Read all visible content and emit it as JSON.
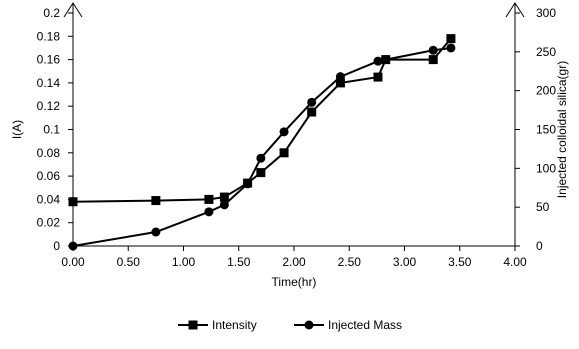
{
  "chart_data": {
    "type": "line",
    "title": "",
    "xlabel": "Time(hr)",
    "ylabel_left": "I(A)",
    "ylabel_right": "Injected colloidal silica(gr)",
    "xlim": [
      0,
      4
    ],
    "ylim_left": [
      0,
      0.2
    ],
    "ylim_right": [
      0,
      300
    ],
    "x_ticks": [
      "0.00",
      "0.50",
      "1.00",
      "1.50",
      "2.00",
      "2.50",
      "3.00",
      "3.50",
      "4.00"
    ],
    "y_left_ticks": [
      "0",
      "0.02",
      "0.04",
      "0.06",
      "0.08",
      "0.1",
      "0.12",
      "0.14",
      "0.16",
      "0.18",
      "0.2"
    ],
    "y_right_ticks": [
      "0",
      "50",
      "100",
      "150",
      "200",
      "250",
      "300"
    ],
    "grid": false,
    "legend_position": "bottom",
    "series": [
      {
        "name": "Intensity",
        "axis": "left",
        "marker": "square",
        "color": "#000000",
        "x": [
          0.0,
          0.75,
          1.23,
          1.37,
          1.58,
          1.7,
          1.91,
          2.16,
          2.42,
          2.76,
          2.83,
          3.26,
          3.42
        ],
        "y": [
          0.038,
          0.039,
          0.04,
          0.042,
          0.054,
          0.063,
          0.08,
          0.115,
          0.14,
          0.145,
          0.16,
          0.16,
          0.178
        ]
      },
      {
        "name": "Injected Mass",
        "axis": "right",
        "marker": "circle",
        "color": "#000000",
        "x": [
          0.0,
          0.75,
          1.23,
          1.37,
          1.58,
          1.7,
          1.91,
          2.16,
          2.42,
          2.76,
          2.83,
          3.26,
          3.42
        ],
        "y": [
          0,
          18,
          44,
          53,
          80,
          113,
          147,
          185,
          218,
          238,
          240,
          252,
          255
        ]
      }
    ]
  }
}
